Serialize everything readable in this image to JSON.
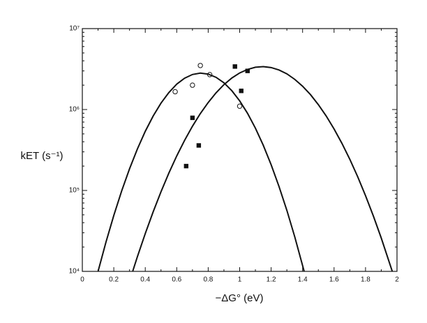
{
  "chart_data": {
    "type": "scatter",
    "x_label": "−ΔG° (eV)",
    "y_label": "kET (s⁻¹)",
    "xlim": [
      0,
      2
    ],
    "xticks": [
      0,
      0.2,
      0.4,
      0.6,
      0.8,
      1,
      1.2,
      1.4,
      1.6,
      1.8,
      2
    ],
    "ylim": [
      10000,
      10000000
    ],
    "yticks": [
      {
        "value": 10000,
        "label": "10⁴"
      },
      {
        "value": 100000,
        "label": "10⁵"
      },
      {
        "value": 1000000,
        "label": "10⁶"
      },
      {
        "value": 10000000,
        "label": "10⁷"
      }
    ],
    "y_scale": "log",
    "series": [
      {
        "marker": "open-circle",
        "color": "#111",
        "x": [
          0.59,
          0.7,
          0.75,
          0.81,
          1.0
        ],
        "values": [
          1660000,
          2000000,
          3500000,
          2700000,
          1100000
        ]
      },
      {
        "marker": "filled-square",
        "color": "#111",
        "x": [
          0.66,
          0.7,
          0.74,
          0.97,
          1.01,
          1.05
        ],
        "values": [
          200000,
          790000,
          360000,
          3400000,
          1700000,
          3000000
        ]
      },
      {
        "marker": "line",
        "color": "#111",
        "x": [
          0.1,
          0.15,
          0.2,
          0.25,
          0.3,
          0.35,
          0.4,
          0.45,
          0.5,
          0.55,
          0.6,
          0.65,
          0.7,
          0.75,
          0.8,
          0.85,
          0.9,
          0.95,
          1.0,
          1.05,
          1.1,
          1.15,
          1.2,
          1.25,
          1.3,
          1.35,
          1.41
        ],
        "values": [
          10000,
          22900,
          49100,
          98600,
          185000,
          326000,
          538000,
          830000,
          1200000,
          1620000,
          2060000,
          2440000,
          2710000,
          2820000,
          2740000,
          2500000,
          2140000,
          1710000,
          1280000,
          898000,
          589000,
          362000,
          208000,
          112000,
          56800,
          26800,
          10000
        ]
      },
      {
        "marker": "line",
        "color": "#111",
        "x": [
          0.32,
          0.35,
          0.4,
          0.45,
          0.5,
          0.55,
          0.6,
          0.65,
          0.7,
          0.75,
          0.8,
          0.85,
          0.9,
          0.95,
          1.0,
          1.05,
          1.1,
          1.15,
          1.2,
          1.25,
          1.3,
          1.35,
          1.4,
          1.45,
          1.5,
          1.55,
          1.6,
          1.65,
          1.7,
          1.75,
          1.8,
          1.85,
          1.9,
          1.97
        ],
        "values": [
          10000,
          15200,
          29300,
          54300,
          96300,
          164000,
          267000,
          416000,
          622000,
          892000,
          1220000,
          1610000,
          2030000,
          2450000,
          2830000,
          3130000,
          3330000,
          3390000,
          3300000,
          3080000,
          2760000,
          2360000,
          1940000,
          1530000,
          1150000,
          832000,
          575000,
          382000,
          243000,
          148000,
          86100,
          48200,
          25800,
          10000
        ]
      }
    ]
  }
}
